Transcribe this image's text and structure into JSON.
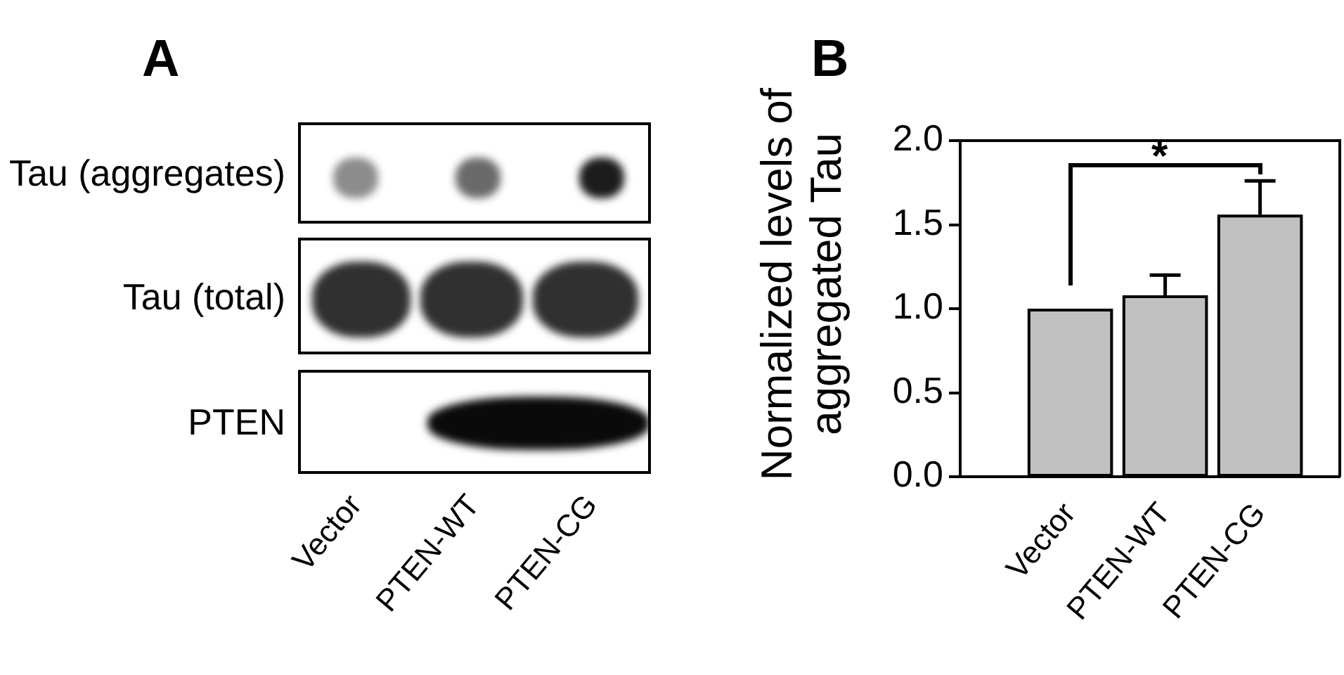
{
  "chart_data": [
    {
      "type": "other",
      "title": "A",
      "y_categories": [
        "Tau (aggregates)",
        "Tau (total)",
        "PTEN"
      ],
      "categories": [
        "Vector",
        "PTEN-WT",
        "PTEN-CG"
      ]
    },
    {
      "type": "bar",
      "title": "B",
      "ylabel": "Normalized levels of aggregated Tau",
      "categories": [
        "Vector",
        "PTEN-WT",
        "PTEN-CG"
      ],
      "values": [
        1.0,
        1.08,
        1.56
      ],
      "errors": [
        null,
        [
          1.08,
          1.2
        ],
        [
          1.56,
          1.76
        ]
      ],
      "color": "#c0c0c0",
      "ylim": [
        0,
        2
      ],
      "yticks": [
        {
          "value": 0,
          "label": "0.0"
        },
        0.5,
        {
          "value": 1,
          "label": "1.0"
        },
        1.5,
        {
          "value": 2,
          "label": "2.0"
        }
      ],
      "grid": false,
      "legend": false,
      "annotations": [
        "*"
      ]
    }
  ]
}
